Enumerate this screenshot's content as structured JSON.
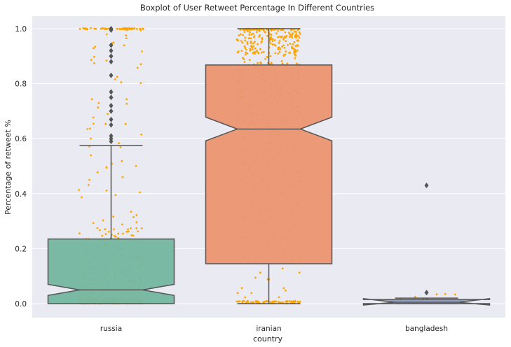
{
  "chart_data": {
    "type": "boxplot",
    "title": "Boxplot of User Retweet Percentage In Different Countries",
    "xlabel": "country",
    "ylabel": "Percentage of retweet %",
    "ylim": [
      -0.05,
      1.05
    ],
    "yticks": [
      "0.0",
      "0.2",
      "0.4",
      "0.6",
      "0.8",
      "1.0"
    ],
    "grid": true,
    "notched": true,
    "overlay": "strip (jittered points)",
    "categories": [
      "russia",
      "iranian",
      "bangladesh"
    ],
    "colors": {
      "background": "#eaeaf2",
      "grid": "#ffffff",
      "outline": "#555555",
      "points": "#ffa500",
      "boxes": [
        "#76b7a0",
        "#ea9672",
        "#8d9cc7"
      ]
    },
    "boxes": [
      {
        "category": "russia",
        "whisker_low": 0.0,
        "q1": 0.0,
        "median": 0.05,
        "q3": 0.235,
        "whisker_high": 0.575,
        "notch_low": 0.03,
        "notch_high": 0.07,
        "outliers": [
          0.59,
          0.6,
          0.61,
          0.65,
          0.67,
          0.7,
          0.72,
          0.75,
          0.77,
          0.83,
          0.88,
          0.9,
          0.92,
          0.94,
          0.995,
          1.0
        ]
      },
      {
        "category": "iranian",
        "whisker_low": 0.0,
        "q1": 0.145,
        "median": 0.635,
        "q3": 0.868,
        "whisker_high": 1.0,
        "notch_low": 0.592,
        "notch_high": 0.678,
        "outliers": []
      },
      {
        "category": "bangladesh",
        "whisker_low": 0.0,
        "q1": 0.0,
        "median": 0.005,
        "q3": 0.015,
        "whisker_high": 0.02,
        "notch_low": -0.005,
        "notch_high": 0.018,
        "outliers": [
          0.04,
          0.43
        ]
      }
    ]
  }
}
